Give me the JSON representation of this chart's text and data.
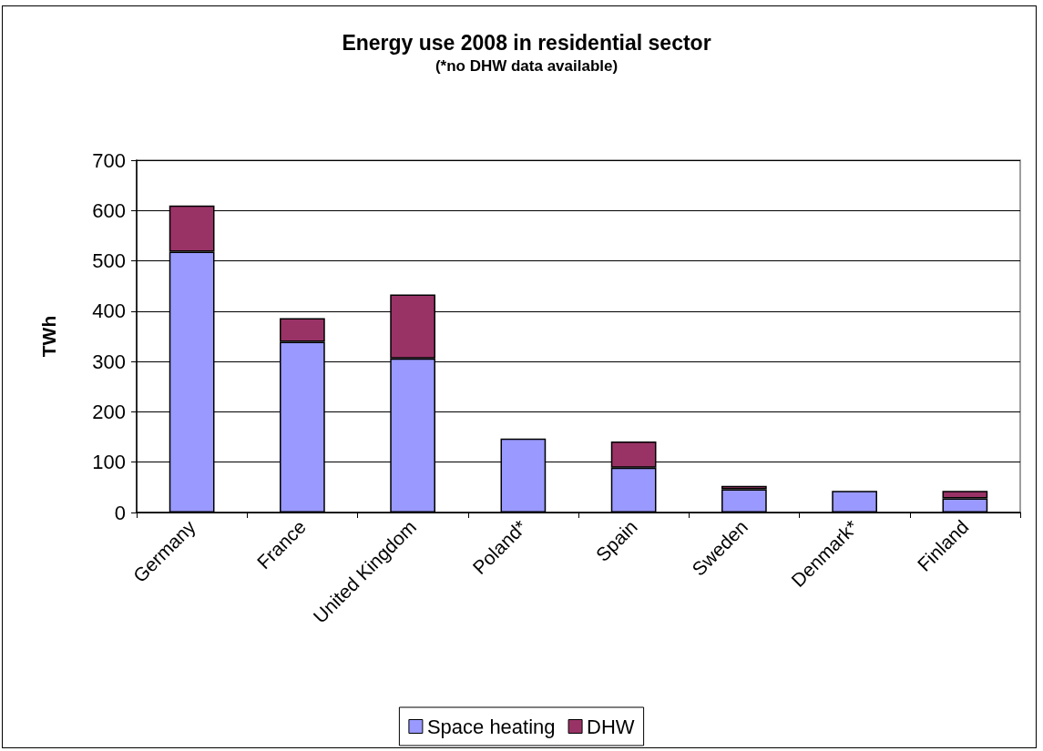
{
  "chart_data": {
    "type": "bar",
    "title": "Energy use 2008 in residential sector",
    "subtitle": "(*no DHW data available)",
    "ylabel": "TWh",
    "categories": [
      "Germany",
      "France",
      "United Kingdom",
      "Poland*",
      "Spain",
      "Sweden",
      "Denmark*",
      "Finland"
    ],
    "series": [
      {
        "name": "Space heating",
        "color": "#9999ff",
        "values": [
          518,
          339,
          306,
          147,
          89,
          46,
          43,
          28
        ]
      },
      {
        "name": "DHW",
        "color": "#993366",
        "values": [
          92,
          47,
          127,
          null,
          52,
          7,
          null,
          15
        ]
      }
    ],
    "stacked": true,
    "ylim": [
      0,
      700
    ],
    "yticks": [
      0,
      100,
      200,
      300,
      400,
      500,
      600,
      700
    ],
    "grid": "y",
    "legend": "bottom"
  }
}
